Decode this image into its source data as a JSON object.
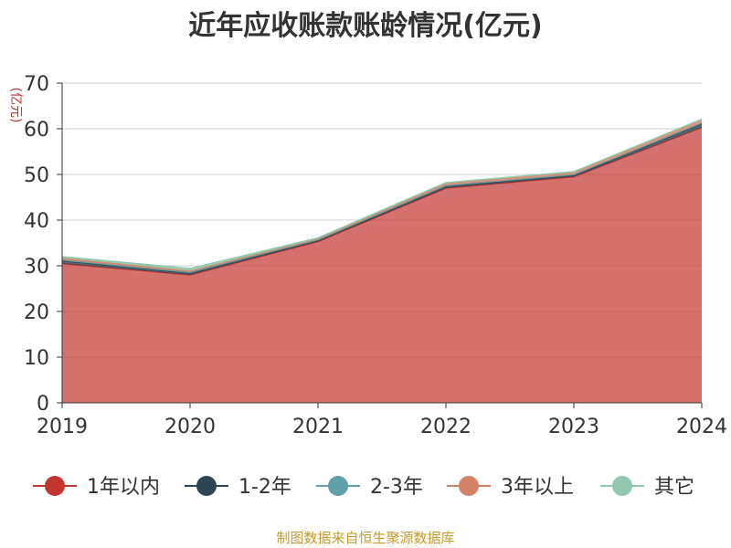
{
  "chart_data": {
    "type": "area",
    "title": "近年应收账款账龄情况(亿元)",
    "ylabel": "(亿元)",
    "xlabel": "",
    "categories": [
      "2019",
      "2020",
      "2021",
      "2022",
      "2023",
      "2024"
    ],
    "ylim": [
      0,
      70
    ],
    "yticks": [
      0,
      10,
      20,
      30,
      40,
      50,
      60,
      70
    ],
    "stacked": true,
    "grid": true,
    "legend_position": "bottom",
    "series": [
      {
        "name": "1年以内",
        "color": "#c23531",
        "values": [
          30.5,
          28.0,
          35.3,
          47.0,
          49.5,
          60.3
        ]
      },
      {
        "name": "1-2年",
        "color": "#2f4554",
        "values": [
          0.6,
          0.4,
          0.3,
          0.4,
          0.3,
          0.8
        ]
      },
      {
        "name": "2-3年",
        "color": "#61a0a8",
        "values": [
          0.2,
          0.2,
          0.1,
          0.2,
          0.2,
          0.2
        ]
      },
      {
        "name": "3年以上",
        "color": "#d48265",
        "values": [
          0.4,
          0.3,
          0.2,
          0.5,
          0.5,
          0.7
        ]
      },
      {
        "name": "其它",
        "color": "#91c7ae",
        "values": [
          0.3,
          0.5,
          0.2,
          0.1,
          0.1,
          0.1
        ]
      }
    ]
  },
  "source_text": "制图数据来自恒生聚源数据库"
}
